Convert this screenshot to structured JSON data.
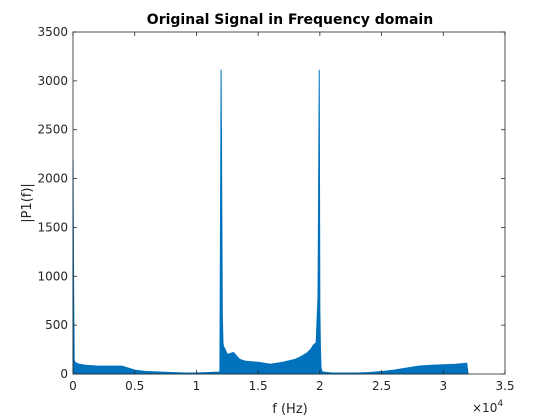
{
  "chart_data": {
    "type": "area",
    "title": "Original Signal in Frequency domain",
    "xlabel": "f (Hz)",
    "ylabel": "|P1(f)|",
    "x_exponent_base": "×10",
    "x_exponent_power": "4",
    "xlim": [
      0,
      35000
    ],
    "ylim": [
      0,
      3500
    ],
    "x_ticks": [
      0,
      5000,
      10000,
      15000,
      20000,
      25000,
      30000,
      35000
    ],
    "x_tick_labels": [
      "0",
      "0.5",
      "1",
      "1.5",
      "2",
      "2.5",
      "3",
      "3.5"
    ],
    "y_ticks": [
      0,
      500,
      1000,
      1500,
      2000,
      2500,
      3000,
      3500
    ],
    "y_tick_labels": [
      "0",
      "500",
      "1000",
      "1500",
      "2000",
      "2500",
      "3000",
      "3500"
    ],
    "grid": false,
    "series_color": "#0072BD",
    "series": [
      {
        "x": [
          0,
          50,
          100,
          150,
          500,
          1000,
          2000,
          3000,
          4000,
          5000,
          6000,
          7000,
          8000,
          9000,
          10000,
          11000,
          11900,
          12000,
          12050,
          12100,
          12150,
          12200,
          12300,
          12500,
          13000,
          13500,
          14000,
          15000,
          16000,
          17000,
          18000,
          18500,
          19000,
          19300,
          19500,
          19700,
          19850,
          19900,
          19950,
          20000,
          20050,
          20100,
          20200,
          21000,
          22000,
          23000,
          24000,
          25000,
          26000,
          27000,
          28000,
          29000,
          30000,
          31000,
          31900,
          32000
        ],
        "y": [
          2180,
          900,
          150,
          120,
          100,
          90,
          80,
          80,
          80,
          40,
          25,
          20,
          15,
          10,
          10,
          15,
          20,
          3110,
          1900,
          600,
          320,
          280,
          260,
          200,
          220,
          150,
          130,
          120,
          100,
          120,
          150,
          180,
          220,
          260,
          300,
          320,
          800,
          1900,
          3110,
          650,
          250,
          60,
          20,
          10,
          10,
          10,
          15,
          25,
          40,
          60,
          80,
          90,
          95,
          100,
          110,
          10
        ]
      }
    ]
  }
}
